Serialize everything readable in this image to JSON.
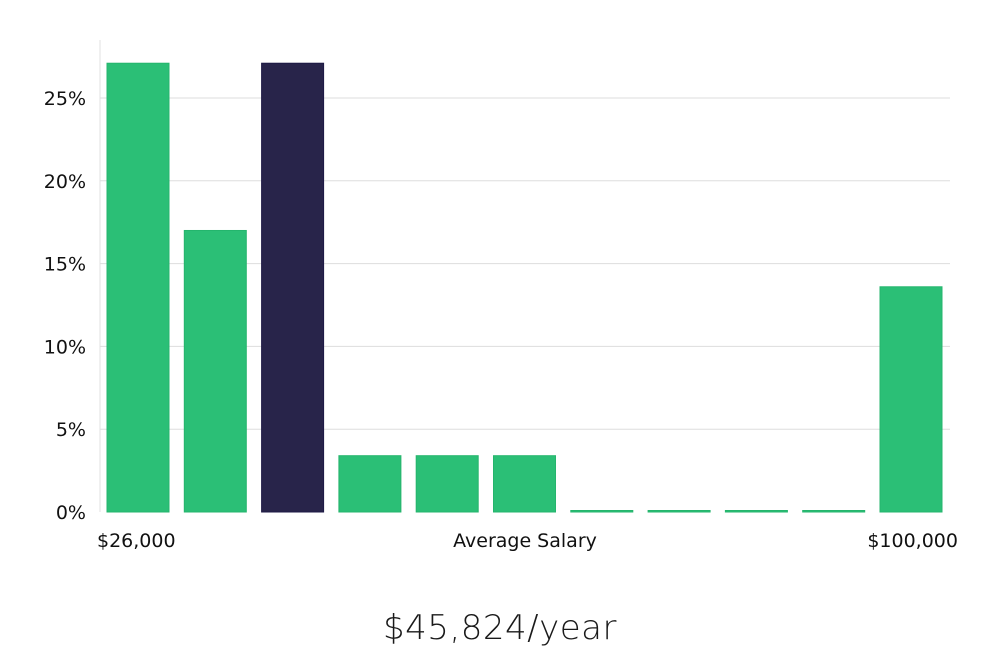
{
  "chart_data": {
    "type": "bar",
    "xlabel": "Average Salary",
    "x_min_label": "$26,000",
    "x_max_label": "$100,000",
    "y_ticks": [
      "0%",
      "5%",
      "10%",
      "15%",
      "20%",
      "25%"
    ],
    "ylim": [
      0,
      28
    ],
    "grid": true,
    "values": [
      27.1,
      17.0,
      27.1,
      3.4,
      3.4,
      3.4,
      0,
      0,
      0,
      0,
      13.6
    ],
    "highlight_index": 2,
    "colors": {
      "bar": "#2bbf76",
      "highlight": "#28244a",
      "grid": "#dddddd",
      "axis": "#e0e0e0"
    }
  },
  "headline": "$45,824/year"
}
